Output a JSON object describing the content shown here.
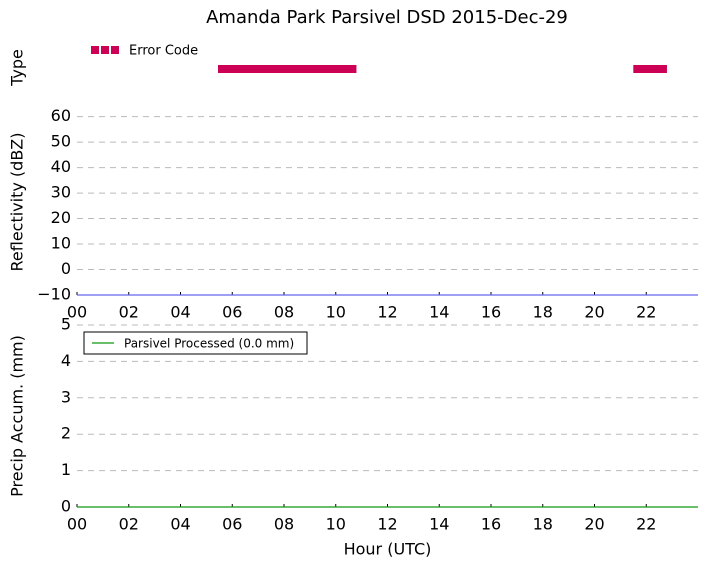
{
  "chart_data": [
    {
      "type": "timeline",
      "title": "Amanda Park Parsivel DSD 2015-Dec-29",
      "ylabel": "Type",
      "xlim": [
        0,
        24
      ],
      "series": [
        {
          "name": "Error Code",
          "color": "#cc0055",
          "start": [
            5.45,
            21.5
          ],
          "end": [
            10.8,
            22.8
          ]
        }
      ]
    },
    {
      "type": "line",
      "ylabel": "Reflectivity (dBZ)",
      "xlim": [
        0,
        24
      ],
      "ylim": [
        -10,
        63
      ],
      "yticks": [
        {
          "value": -10,
          "label": "−10"
        },
        0,
        10,
        20,
        30,
        40,
        50,
        60
      ],
      "grid": true,
      "xticks": [
        {
          "value": 0,
          "label": "00"
        },
        {
          "value": 2,
          "label": "02"
        },
        {
          "value": 4,
          "label": "04"
        },
        {
          "value": 6,
          "label": "06"
        },
        {
          "value": 8,
          "label": "08"
        },
        10,
        12,
        14,
        16,
        18,
        20,
        22
      ],
      "series": [
        {
          "color": "#6666ee",
          "x": [
            0,
            24
          ],
          "values": [
            -10,
            -10
          ]
        }
      ]
    },
    {
      "type": "line",
      "ylabel": "Precip Accum. (mm)",
      "xlabel": "Hour (UTC)",
      "xlim": [
        0,
        24
      ],
      "ylim": [
        0,
        5
      ],
      "yticks": [
        0,
        1,
        2,
        3,
        4,
        5
      ],
      "grid": true,
      "xticks": [
        {
          "value": 0,
          "label": "00"
        },
        {
          "value": 2,
          "label": "02"
        },
        {
          "value": 4,
          "label": "04"
        },
        {
          "value": 6,
          "label": "06"
        },
        {
          "value": 8,
          "label": "08"
        },
        10,
        12,
        14,
        16,
        18,
        20,
        22
      ],
      "series": [
        {
          "name": "Parsivel Processed (0.0 mm)",
          "color": "#119911",
          "x": [
            0,
            24
          ],
          "values": [
            0,
            0
          ]
        }
      ]
    }
  ]
}
